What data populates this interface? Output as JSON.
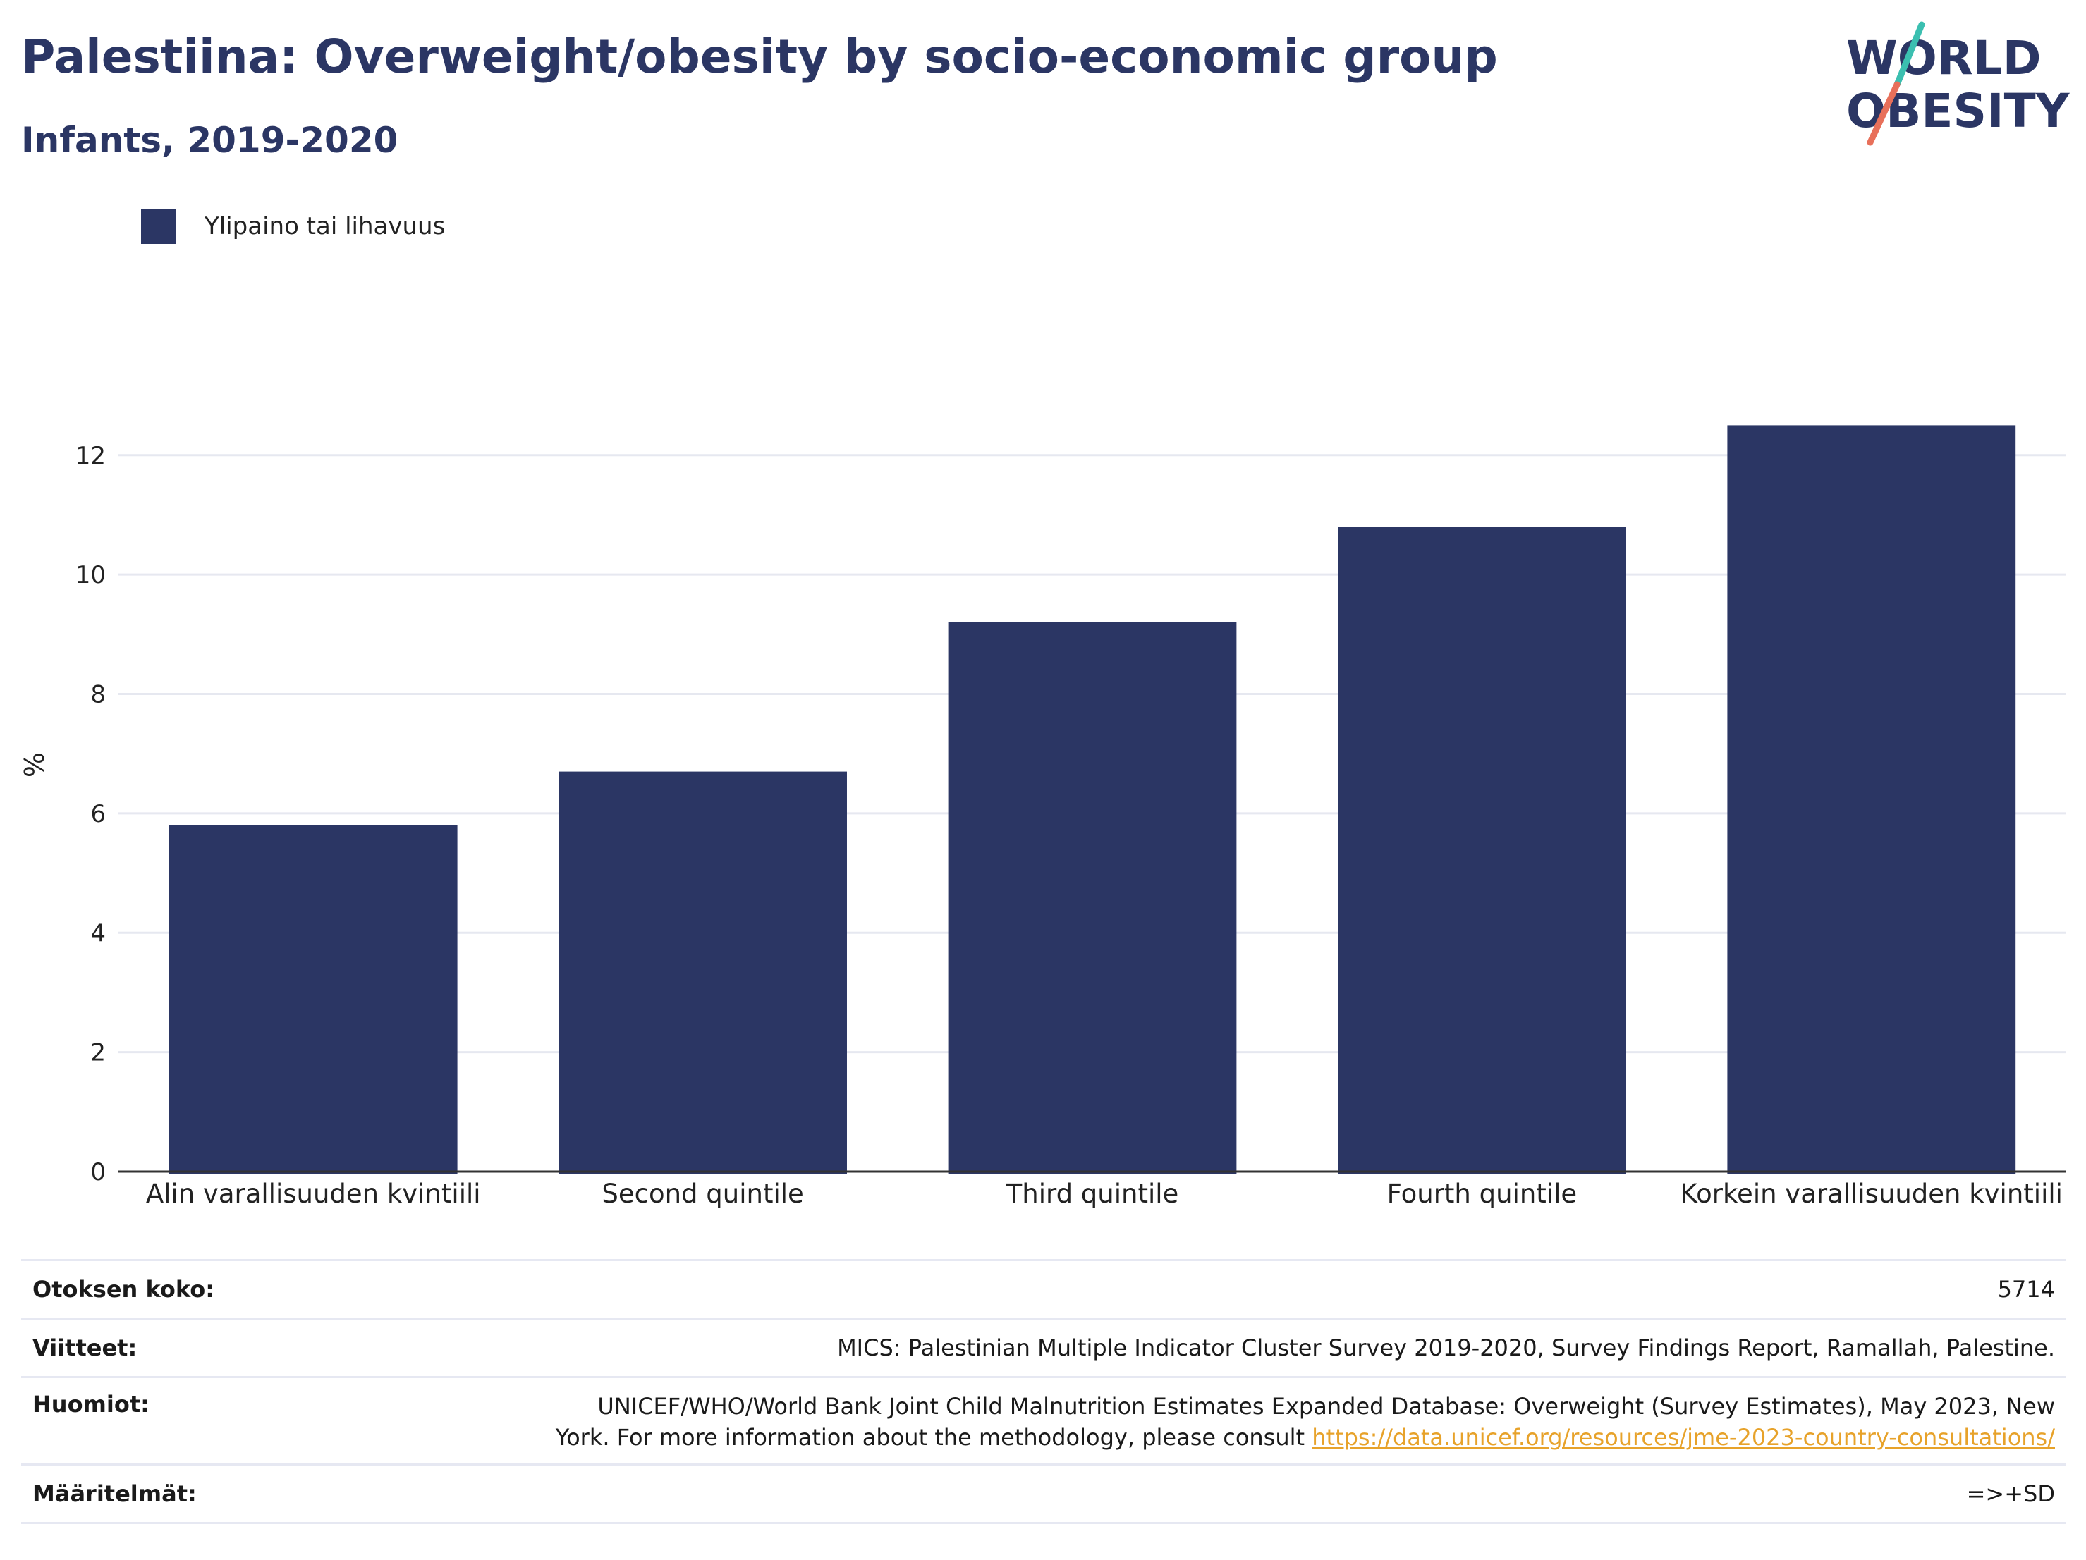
{
  "header": {
    "title": "Palestiina: Overweight/obesity by socio-economic group",
    "subtitle": "Infants, 2019-2020"
  },
  "logo": {
    "line1": "WORLD",
    "line2": "OBESITY",
    "colors": {
      "text": "#2b3664",
      "slash_top": "#3bbfb0",
      "slash_bottom": "#e8705a"
    }
  },
  "colors": {
    "bar": "#2b3664",
    "grid": "#e6e8f0",
    "axis": "#333333",
    "link": "#e7a22a"
  },
  "chart_data": {
    "type": "bar",
    "categories": [
      "Alin varallisuuden kvintiili",
      "Second quintile",
      "Third quintile",
      "Fourth quintile",
      "Korkein varallisuuden kvintiili"
    ],
    "series": [
      {
        "name": "Ylipaino tai lihavuus",
        "values": [
          5.8,
          6.7,
          9.2,
          10.8,
          12.5
        ]
      }
    ],
    "ylabel": "%",
    "ylim": [
      0,
      12.8
    ],
    "yticks": [
      0,
      2,
      4,
      6,
      8,
      10,
      12
    ],
    "grid": true,
    "legend_position": "top-left"
  },
  "table": {
    "rows": [
      {
        "key": "Otoksen koko:",
        "value": "5714"
      },
      {
        "key": "Viitteet:",
        "value": "MICS: Palestinian Multiple Indicator Cluster Survey 2019-2020, Survey Findings Report, Ramallah, Palestine."
      },
      {
        "key": "Huomiot:",
        "value_line1": "UNICEF/WHO/World Bank Joint Child Malnutrition Estimates Expanded Database: Overweight (Survey Estimates), May 2023, New",
        "value_line2": "York. For more information about the methodology, please consult",
        "link": "https://data.unicef.org/resources/jme-2023-country-consultations/"
      },
      {
        "key": "Määritelmät:",
        "value": "=>+SD"
      }
    ]
  }
}
